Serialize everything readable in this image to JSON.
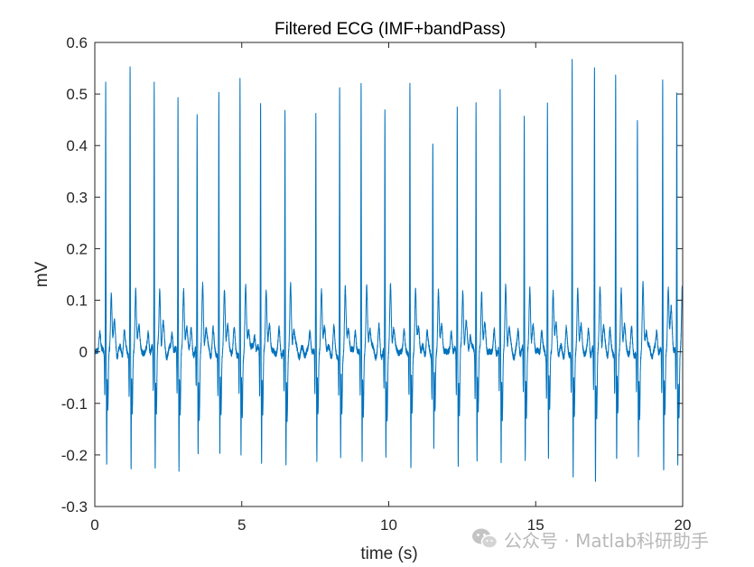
{
  "chart_data": {
    "type": "line",
    "title": "Filtered ECG (IMF+bandPass)",
    "xlabel": "time (s)",
    "ylabel": "mV",
    "xlim": [
      0,
      20
    ],
    "ylim": [
      -0.3,
      0.6
    ],
    "xticks": [
      "0",
      "5",
      "10",
      "15",
      "20"
    ],
    "yticks": [
      "-0.3",
      "-0.2",
      "-0.1",
      "0",
      "0.1",
      "0.2",
      "0.3",
      "0.4",
      "0.5",
      "0.6"
    ],
    "grid": false,
    "line_color": "#0072BD",
    "beats": {
      "r_peak_times": [
        0.37,
        1.2,
        2.02,
        2.83,
        3.48,
        4.22,
        4.94,
        5.64,
        6.47,
        7.52,
        8.33,
        9.06,
        9.87,
        10.72,
        11.5,
        12.33,
        12.97,
        13.79,
        14.61,
        15.4,
        16.24,
        17.0,
        17.72,
        18.46,
        19.32,
        19.8
      ],
      "r_peak_values": [
        0.53,
        0.555,
        0.525,
        0.5,
        0.45,
        0.5,
        0.52,
        0.49,
        0.46,
        0.46,
        0.5,
        0.52,
        0.46,
        0.52,
        0.41,
        0.48,
        0.49,
        0.5,
        0.46,
        0.48,
        0.56,
        0.55,
        0.54,
        0.44,
        0.53,
        0.5
      ],
      "s_trough_values": [
        -0.22,
        -0.23,
        -0.21,
        -0.22,
        -0.19,
        -0.2,
        -0.2,
        -0.21,
        -0.22,
        -0.21,
        -0.21,
        -0.21,
        -0.2,
        -0.23,
        -0.19,
        -0.21,
        -0.21,
        -0.21,
        -0.2,
        -0.21,
        -0.245,
        -0.245,
        -0.21,
        -0.2,
        -0.225,
        -0.21
      ],
      "t_wave_peak": 0.12,
      "p_wave_peak": 0.04,
      "post_s_dip": -0.12
    }
  },
  "watermark": {
    "text": "公众号 · Matlab科研助手",
    "icon": "wechat-icon"
  }
}
